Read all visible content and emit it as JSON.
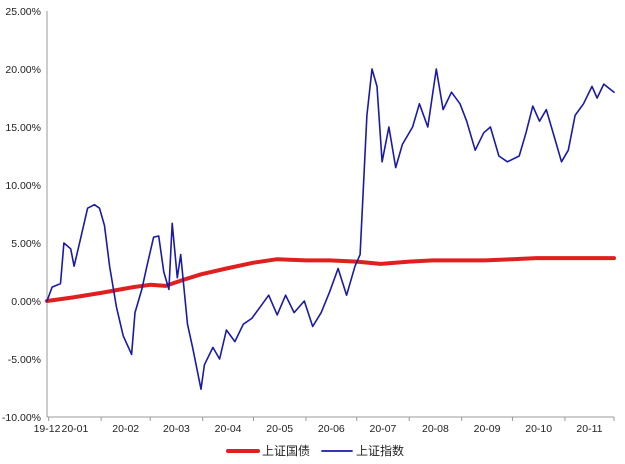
{
  "chart_data": {
    "type": "line",
    "title": "",
    "xlabel": "",
    "ylabel": "",
    "ylim": [
      -0.1,
      0.25
    ],
    "y_ticks": [
      "25.00%",
      "20.00%",
      "15.00%",
      "10.00%",
      "5.00%",
      "0.00%",
      "-5.00%",
      "-10.00%"
    ],
    "x_ticks": [
      "19-12",
      "20-01",
      "20-02",
      "20-03",
      "20-04",
      "20-05",
      "20-06",
      "20-07",
      "20-08",
      "20-09",
      "20-10",
      "20-11"
    ],
    "grid": false,
    "legend_position": "bottom",
    "series": [
      {
        "name": "上证国债",
        "color": "#e01f1f",
        "points": [
          [
            "2019-12-31",
            0.0
          ],
          [
            "2020-01-15",
            0.003
          ],
          [
            "2020-02-01",
            0.007
          ],
          [
            "2020-02-20",
            0.012
          ],
          [
            "2020-03-01",
            0.014
          ],
          [
            "2020-03-10",
            0.013
          ],
          [
            "2020-03-20",
            0.018
          ],
          [
            "2020-03-31",
            0.023
          ],
          [
            "2020-04-15",
            0.028
          ],
          [
            "2020-05-01",
            0.033
          ],
          [
            "2020-05-15",
            0.036
          ],
          [
            "2020-06-01",
            0.035
          ],
          [
            "2020-06-15",
            0.035
          ],
          [
            "2020-07-01",
            0.034
          ],
          [
            "2020-07-15",
            0.032
          ],
          [
            "2020-08-01",
            0.034
          ],
          [
            "2020-08-15",
            0.035
          ],
          [
            "2020-09-01",
            0.035
          ],
          [
            "2020-09-15",
            0.035
          ],
          [
            "2020-10-01",
            0.036
          ],
          [
            "2020-10-15",
            0.037
          ],
          [
            "2020-11-01",
            0.037
          ],
          [
            "2020-11-15",
            0.037
          ],
          [
            "2020-11-30",
            0.037
          ]
        ]
      },
      {
        "name": "上证指数",
        "color": "#1a1aa8",
        "points": [
          [
            "2019-12-31",
            0.0
          ],
          [
            "2020-01-03",
            0.012
          ],
          [
            "2020-01-08",
            0.015
          ],
          [
            "2020-01-10",
            0.05
          ],
          [
            "2020-01-14",
            0.045
          ],
          [
            "2020-01-16",
            0.03
          ],
          [
            "2020-01-20",
            0.055
          ],
          [
            "2020-01-24",
            0.08
          ],
          [
            "2020-01-28",
            0.083
          ],
          [
            "2020-01-31",
            0.08
          ],
          [
            "2020-02-03",
            0.065
          ],
          [
            "2020-02-06",
            0.03
          ],
          [
            "2020-02-10",
            -0.005
          ],
          [
            "2020-02-14",
            -0.03
          ],
          [
            "2020-02-19",
            -0.046
          ],
          [
            "2020-02-21",
            -0.01
          ],
          [
            "2020-02-25",
            0.01
          ],
          [
            "2020-02-28",
            0.03
          ],
          [
            "2020-03-03",
            0.055
          ],
          [
            "2020-03-06",
            0.056
          ],
          [
            "2020-03-09",
            0.025
          ],
          [
            "2020-03-12",
            0.01
          ],
          [
            "2020-03-14",
            0.067
          ],
          [
            "2020-03-17",
            0.02
          ],
          [
            "2020-03-19",
            0.04
          ],
          [
            "2020-03-23",
            -0.02
          ],
          [
            "2020-03-26",
            -0.04
          ],
          [
            "2020-03-31",
            -0.076
          ],
          [
            "2020-04-02",
            -0.055
          ],
          [
            "2020-04-07",
            -0.04
          ],
          [
            "2020-04-11",
            -0.05
          ],
          [
            "2020-04-15",
            -0.025
          ],
          [
            "2020-04-20",
            -0.035
          ],
          [
            "2020-04-25",
            -0.02
          ],
          [
            "2020-04-30",
            -0.015
          ],
          [
            "2020-05-05",
            -0.005
          ],
          [
            "2020-05-10",
            0.005
          ],
          [
            "2020-05-15",
            -0.012
          ],
          [
            "2020-05-20",
            0.005
          ],
          [
            "2020-05-25",
            -0.01
          ],
          [
            "2020-05-31",
            0.0
          ],
          [
            "2020-06-05",
            -0.022
          ],
          [
            "2020-06-10",
            -0.01
          ],
          [
            "2020-06-15",
            0.008
          ],
          [
            "2020-06-20",
            0.028
          ],
          [
            "2020-06-25",
            0.005
          ],
          [
            "2020-06-30",
            0.03
          ],
          [
            "2020-07-03",
            0.04
          ],
          [
            "2020-07-07",
            0.16
          ],
          [
            "2020-07-10",
            0.2
          ],
          [
            "2020-07-13",
            0.185
          ],
          [
            "2020-07-16",
            0.12
          ],
          [
            "2020-07-20",
            0.15
          ],
          [
            "2020-07-24",
            0.115
          ],
          [
            "2020-07-28",
            0.135
          ],
          [
            "2020-08-03",
            0.15
          ],
          [
            "2020-08-07",
            0.17
          ],
          [
            "2020-08-12",
            0.15
          ],
          [
            "2020-08-17",
            0.2
          ],
          [
            "2020-08-21",
            0.165
          ],
          [
            "2020-08-26",
            0.18
          ],
          [
            "2020-08-31",
            0.17
          ],
          [
            "2020-09-04",
            0.155
          ],
          [
            "2020-09-09",
            0.13
          ],
          [
            "2020-09-14",
            0.145
          ],
          [
            "2020-09-18",
            0.15
          ],
          [
            "2020-09-23",
            0.125
          ],
          [
            "2020-09-28",
            0.12
          ],
          [
            "2020-10-05",
            0.125
          ],
          [
            "2020-10-09",
            0.145
          ],
          [
            "2020-10-13",
            0.168
          ],
          [
            "2020-10-17",
            0.155
          ],
          [
            "2020-10-21",
            0.165
          ],
          [
            "2020-10-26",
            0.14
          ],
          [
            "2020-10-30",
            0.12
          ],
          [
            "2020-11-03",
            0.13
          ],
          [
            "2020-11-07",
            0.16
          ],
          [
            "2020-11-12",
            0.17
          ],
          [
            "2020-11-17",
            0.185
          ],
          [
            "2020-11-20",
            0.175
          ],
          [
            "2020-11-24",
            0.187
          ],
          [
            "2020-11-30",
            0.18
          ]
        ]
      }
    ]
  }
}
